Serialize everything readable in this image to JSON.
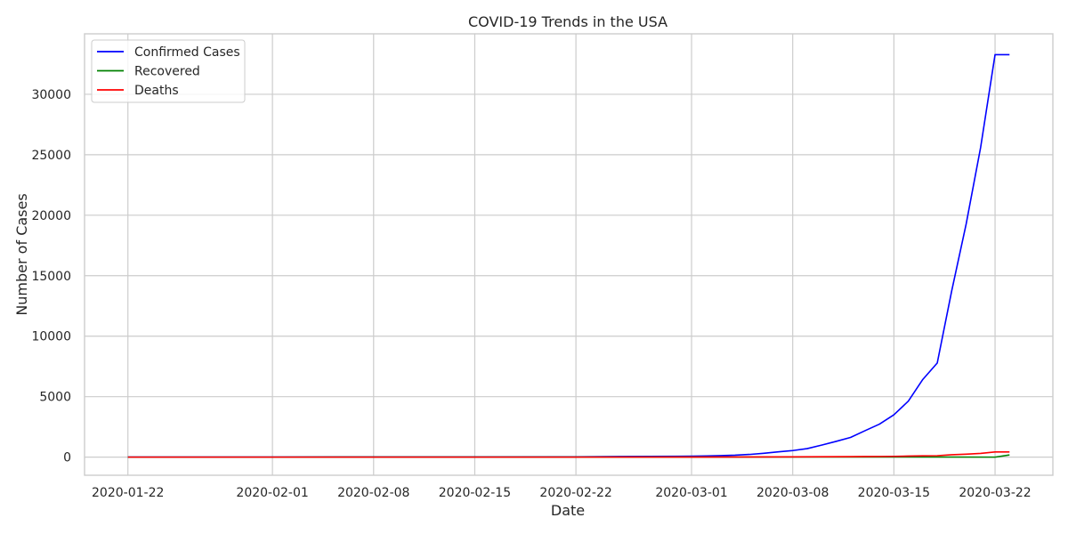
{
  "chart_data": {
    "type": "line",
    "title": "COVID-19 Trends in the USA",
    "xlabel": "Date",
    "ylabel": "Number of Cases",
    "xlim": [
      "2020-01-19",
      "2020-03-26"
    ],
    "ylim": [
      -1500,
      35000
    ],
    "x_ticks": [
      "2020-01-22",
      "2020-02-01",
      "2020-02-08",
      "2020-02-15",
      "2020-02-22",
      "2020-03-01",
      "2020-03-08",
      "2020-03-15",
      "2020-03-22"
    ],
    "y_ticks": [
      0,
      5000,
      10000,
      15000,
      20000,
      25000,
      30000
    ],
    "grid": true,
    "legend_position": "top-left",
    "series": [
      {
        "name": "Confirmed Cases",
        "color": "#0000ff",
        "points": [
          [
            "2020-01-22",
            1
          ],
          [
            "2020-02-01",
            8
          ],
          [
            "2020-02-08",
            12
          ],
          [
            "2020-02-15",
            15
          ],
          [
            "2020-02-22",
            25
          ],
          [
            "2020-02-25",
            53
          ],
          [
            "2020-03-01",
            75
          ],
          [
            "2020-03-02",
            100
          ],
          [
            "2020-03-03",
            124
          ],
          [
            "2020-03-04",
            158
          ],
          [
            "2020-03-05",
            221
          ],
          [
            "2020-03-06",
            319
          ],
          [
            "2020-03-07",
            435
          ],
          [
            "2020-03-08",
            541
          ],
          [
            "2020-03-09",
            704
          ],
          [
            "2020-03-10",
            994
          ],
          [
            "2020-03-11",
            1301
          ],
          [
            "2020-03-12",
            1630
          ],
          [
            "2020-03-13",
            2183
          ],
          [
            "2020-03-14",
            2726
          ],
          [
            "2020-03-15",
            3499
          ],
          [
            "2020-03-16",
            4632
          ],
          [
            "2020-03-17",
            6421
          ],
          [
            "2020-03-18",
            7783
          ],
          [
            "2020-03-19",
            13747
          ],
          [
            "2020-03-20",
            19273
          ],
          [
            "2020-03-21",
            25600
          ],
          [
            "2020-03-22",
            33276
          ],
          [
            "2020-03-23",
            33276
          ]
        ]
      },
      {
        "name": "Recovered",
        "color": "#008000",
        "points": [
          [
            "2020-01-22",
            0
          ],
          [
            "2020-02-01",
            0
          ],
          [
            "2020-02-08",
            3
          ],
          [
            "2020-02-15",
            3
          ],
          [
            "2020-02-22",
            5
          ],
          [
            "2020-03-01",
            7
          ],
          [
            "2020-03-08",
            8
          ],
          [
            "2020-03-15",
            12
          ],
          [
            "2020-03-22",
            0
          ],
          [
            "2020-03-23",
            178
          ]
        ]
      },
      {
        "name": "Deaths",
        "color": "#ff0000",
        "points": [
          [
            "2020-01-22",
            0
          ],
          [
            "2020-02-22",
            0
          ],
          [
            "2020-03-01",
            1
          ],
          [
            "2020-03-02",
            6
          ],
          [
            "2020-03-05",
            12
          ],
          [
            "2020-03-08",
            22
          ],
          [
            "2020-03-10",
            31
          ],
          [
            "2020-03-12",
            40
          ],
          [
            "2020-03-13",
            47
          ],
          [
            "2020-03-14",
            54
          ],
          [
            "2020-03-15",
            63
          ],
          [
            "2020-03-16",
            85
          ],
          [
            "2020-03-17",
            108
          ],
          [
            "2020-03-18",
            118
          ],
          [
            "2020-03-19",
            200
          ],
          [
            "2020-03-20",
            244
          ],
          [
            "2020-03-21",
            307
          ],
          [
            "2020-03-22",
            427
          ],
          [
            "2020-03-23",
            427
          ]
        ]
      }
    ]
  }
}
